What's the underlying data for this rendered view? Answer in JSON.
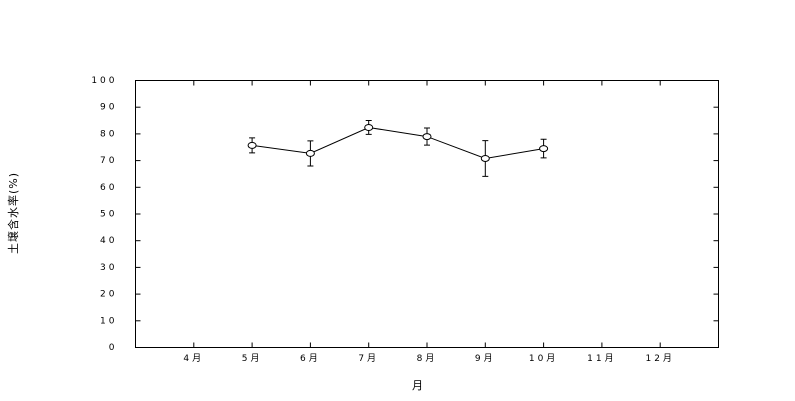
{
  "chart_data": {
    "type": "line",
    "ylabel": "土壌含水率(%)",
    "xlabel": "月",
    "categories": [
      "4月",
      "5月",
      "6月",
      "7月",
      "8月",
      "9月",
      "10月",
      "11月",
      "12月"
    ],
    "values": [
      null,
      75.7,
      72.7,
      82.4,
      79,
      70.8,
      74.5,
      null,
      null
    ],
    "errors": [
      null,
      2.8,
      4.7,
      2.6,
      3.2,
      6.7,
      3.5,
      null,
      null
    ],
    "color": "#000000",
    "ylim": [
      0,
      100
    ],
    "yticks": [
      0,
      10,
      20,
      30,
      40,
      50,
      60,
      70,
      80,
      90,
      100
    ],
    "grid": false
  }
}
